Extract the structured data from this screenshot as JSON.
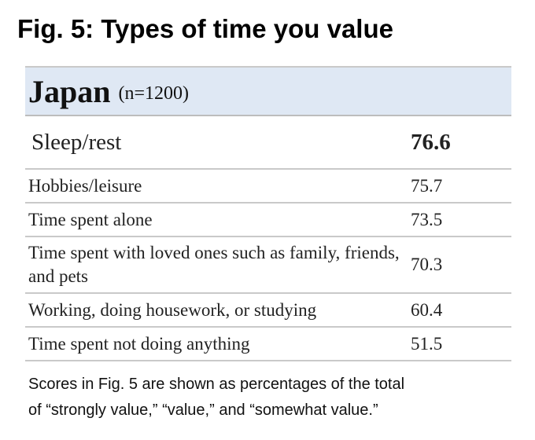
{
  "title": "Fig. 5: Types of time you value",
  "table": {
    "country": "Japan",
    "sample_note": "(n=1200)"
  },
  "footnote": {
    "line1": "Scores in Fig. 5 are shown as percentages of the total",
    "line2": "of “strongly value,” “value,” and “somewhat value.”"
  },
  "chart_data": {
    "type": "table",
    "title": "Fig. 5: Types of time you value",
    "subtitle": "Japan (n=1200)",
    "categories": [
      "Sleep/rest",
      "Hobbies/leisure",
      "Time spent alone",
      "Time spent with loved ones such as family, friends, and pets",
      "Working, doing housework, or studying",
      "Time spent not doing anything"
    ],
    "values": [
      76.6,
      75.7,
      73.5,
      70.3,
      60.4,
      51.5
    ]
  }
}
